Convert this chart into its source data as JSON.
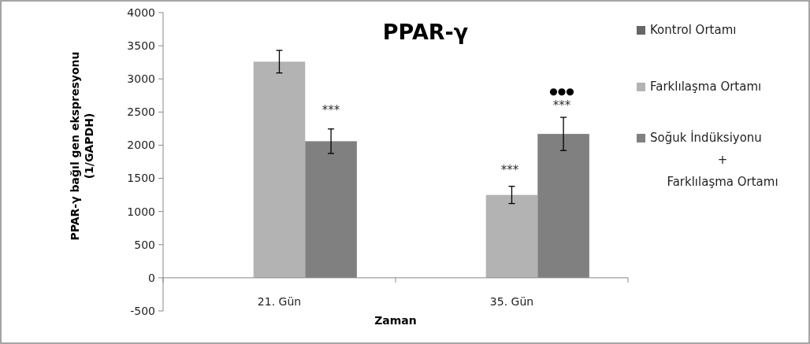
{
  "chart_data": {
    "type": "bar",
    "title": "PPAR-γ",
    "xlabel": "Zaman",
    "ylabel": "PPAR-γ bağıl gen ekspresyonu\n(1/GAPDH)",
    "categories": [
      "21. Gün",
      "35. Gün"
    ],
    "series": [
      {
        "name": "Kontrol Ortamı",
        "color": "#666666",
        "values": [
          null,
          null
        ]
      },
      {
        "name": "Farklılaşma Ortamı",
        "color": "#b3b3b3",
        "values": [
          3260,
          1250
        ],
        "errors": [
          170,
          130
        ]
      },
      {
        "name": "Soğuk İndüksiyonu\n+\nFarklılaşma Ortamı",
        "color": "#808080",
        "values": [
          2060,
          2170
        ],
        "errors": [
          185,
          250
        ]
      }
    ],
    "ylim": [
      -500,
      4000
    ],
    "yticks": [
      -500,
      0,
      500,
      1000,
      1500,
      2000,
      2500,
      3000,
      3500,
      4000
    ],
    "annotations": [
      "***",
      "***",
      "***",
      "●●●"
    ],
    "grid": false,
    "legend": "right"
  }
}
